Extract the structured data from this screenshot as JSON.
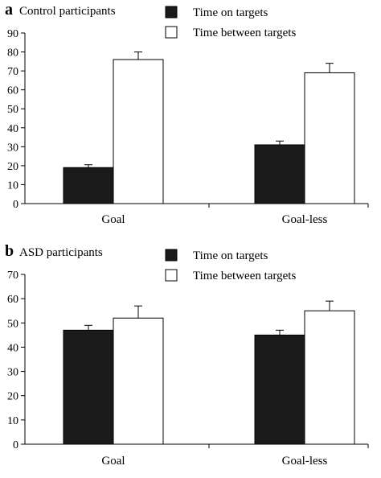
{
  "chart_data": [
    {
      "type": "bar",
      "panel_label": "a",
      "title": "Control participants",
      "categories": [
        "Goal",
        "Goal-less"
      ],
      "series": [
        {
          "name": "Time on targets",
          "values": [
            19,
            31
          ],
          "errors": [
            1.5,
            2
          ],
          "color": "#1a1a1a"
        },
        {
          "name": "Time between targets",
          "values": [
            76,
            69
          ],
          "errors": [
            4,
            5
          ],
          "color": "#ffffff"
        }
      ],
      "ylim": [
        0,
        90
      ],
      "yticks": [
        0,
        10,
        20,
        30,
        40,
        50,
        60,
        70,
        80,
        90
      ],
      "grid": false,
      "legend": "top"
    },
    {
      "type": "bar",
      "panel_label": "b",
      "title": "ASD participants",
      "categories": [
        "Goal",
        "Goal-less"
      ],
      "series": [
        {
          "name": "Time on targets",
          "values": [
            47,
            45
          ],
          "errors": [
            2,
            2
          ],
          "color": "#1a1a1a"
        },
        {
          "name": "Time between targets",
          "values": [
            52,
            55
          ],
          "errors": [
            5,
            4
          ],
          "color": "#ffffff"
        }
      ],
      "ylim": [
        0,
        70
      ],
      "yticks": [
        0,
        10,
        20,
        30,
        40,
        50,
        60,
        70
      ],
      "grid": false,
      "legend": "top"
    }
  ]
}
